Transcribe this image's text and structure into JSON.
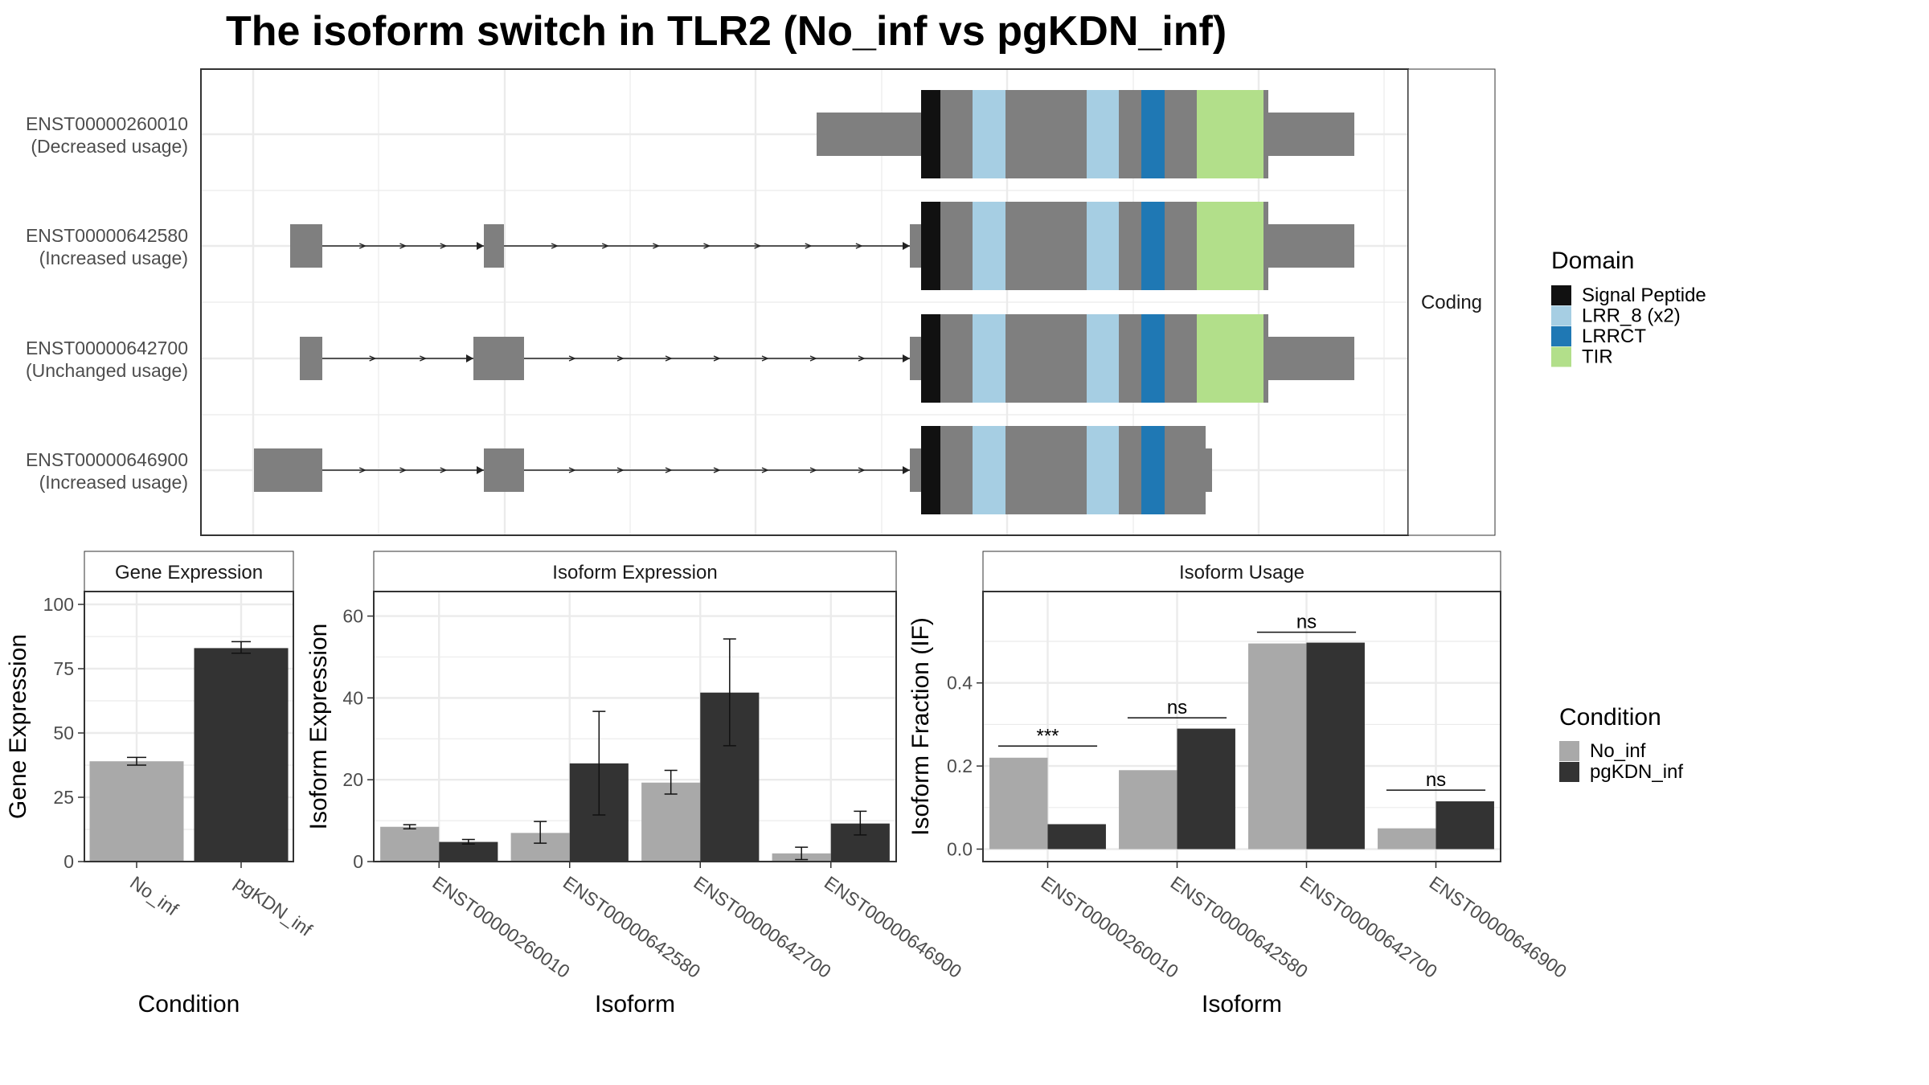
{
  "title": "The isoform switch in TLR2 (No_inf vs pgKDN_inf)",
  "colors": {
    "exon": "#7f7f7f",
    "signal_peptide": "#111111",
    "lrr8": "#a6cee3",
    "lrrct": "#1f78b4",
    "tir": "#b2df8a",
    "no_inf": "#a9a9a9",
    "pgkdn_inf": "#333333",
    "grid": "#ebebeb",
    "strip": "#ffffff"
  },
  "structure": {
    "strip_label": "Coding",
    "transcripts": [
      {
        "id": "ENST00000260010",
        "usage": "(Decreased usage)"
      },
      {
        "id": "ENST00000642580",
        "usage": "(Increased usage)"
      },
      {
        "id": "ENST00000642700",
        "usage": "(Unchanged usage)"
      },
      {
        "id": "ENST00000646900",
        "usage": "(Increased usage)"
      }
    ]
  },
  "legend_domain": {
    "title": "Domain",
    "items": [
      {
        "label": "Signal Peptide",
        "color": "#111111"
      },
      {
        "label": "LRR_8 (x2)",
        "color": "#a6cee3"
      },
      {
        "label": "LRRCT",
        "color": "#1f78b4"
      },
      {
        "label": "TIR",
        "color": "#b2df8a"
      }
    ]
  },
  "legend_condition": {
    "title": "Condition",
    "items": [
      {
        "label": "No_inf",
        "color": "#a9a9a9"
      },
      {
        "label": "pgKDN_inf",
        "color": "#333333"
      }
    ]
  },
  "chart_data": [
    {
      "type": "bar",
      "strip": "Gene Expression",
      "xlabel": "Condition",
      "ylabel": "Gene Expression",
      "categories": [
        "No_inf",
        "pgKDN_inf"
      ],
      "values": [
        39,
        83
      ],
      "errors": [
        [
          37.5,
          40.5
        ],
        [
          81,
          85.5
        ]
      ],
      "ylim": [
        0,
        105
      ],
      "yticks": [
        0,
        25,
        50,
        75,
        100
      ],
      "grid": true
    },
    {
      "type": "bar",
      "strip": "Isoform Expression",
      "xlabel": "Isoform",
      "ylabel": "Isoform Expression",
      "categories": [
        "ENST00000260010",
        "ENST00000642580",
        "ENST00000642700",
        "ENST00000646900"
      ],
      "series": [
        {
          "name": "No_inf",
          "values": [
            8.5,
            7.0,
            19.3,
            2.0
          ],
          "errors": [
            [
              8.0,
              9.0
            ],
            [
              4.5,
              9.8
            ],
            [
              16.5,
              22.3
            ],
            [
              0.5,
              3.5
            ]
          ]
        },
        {
          "name": "pgKDN_inf",
          "values": [
            4.8,
            24.0,
            41.3,
            9.3
          ],
          "errors": [
            [
              4.3,
              5.4
            ],
            [
              11.4,
              36.7
            ],
            [
              28.3,
              54.4
            ],
            [
              6.5,
              12.3
            ]
          ]
        }
      ],
      "ylim": [
        0,
        66
      ],
      "yticks": [
        0,
        20,
        40,
        60
      ],
      "grid": true
    },
    {
      "type": "bar",
      "strip": "Isoform Usage",
      "xlabel": "Isoform",
      "ylabel": "Isoform Fraction (IF)",
      "categories": [
        "ENST00000260010",
        "ENST00000642580",
        "ENST00000642700",
        "ENST00000646900"
      ],
      "series": [
        {
          "name": "No_inf",
          "values": [
            0.22,
            0.19,
            0.495,
            0.05
          ]
        },
        {
          "name": "pgKDN_inf",
          "values": [
            0.06,
            0.29,
            0.497,
            0.115
          ]
        }
      ],
      "significance": [
        "***",
        "ns",
        "ns",
        "ns"
      ],
      "significance_y": [
        0.248,
        0.316,
        0.522,
        0.142
      ],
      "ylim": [
        -0.03,
        0.62
      ],
      "yticks": [
        0.0,
        0.2,
        0.4
      ],
      "grid": true
    }
  ]
}
